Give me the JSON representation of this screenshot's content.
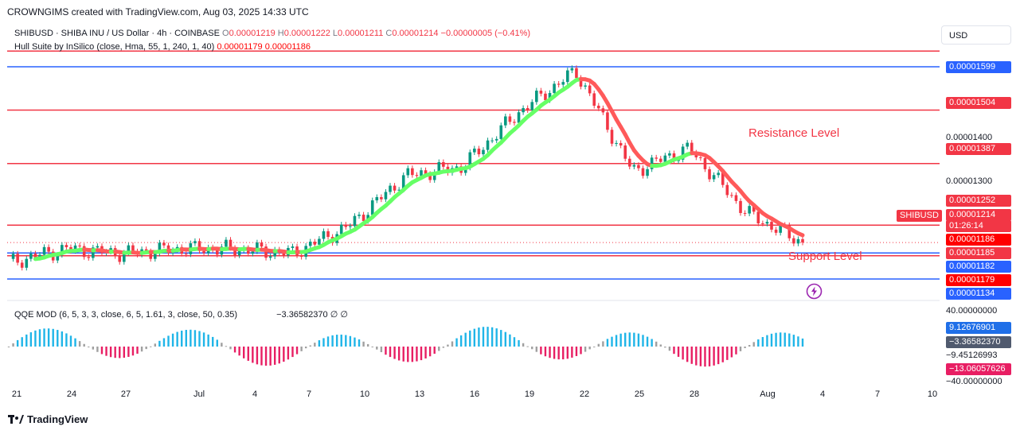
{
  "header": {
    "created": "CROWNGIMS created with TradingView.com, Aug 03, 2025 14:33 UTC"
  },
  "legend": {
    "symbol_line": "SHIBUSD · SHIBA INU / US Dollar · 4h · COINBASE",
    "o_label": "O",
    "o_value": "0.00001219",
    "h_label": "H",
    "h_value": "0.00001222",
    "l_label": "L",
    "l_value": "0.00001211",
    "c_label": "C",
    "c_value": "0.00001214",
    "change": "−0.00000005 (−0.41%)",
    "indicator": "Hull Suite by InSilico (close, Hma, 55, 1, 240, 1, 40)",
    "ind_v1": "0.00001179",
    "ind_v2": "0.00001186",
    "qqe": "QQE MOD (6, 5, 3, 3, close, 6, 5, 1.61, 3, close, 50, 0.35)",
    "qqe_value": "−3.36582370",
    "qqe_na1": "∅",
    "qqe_na2": "∅"
  },
  "currency_button": "USD",
  "annotations": {
    "resistance": "Resistance Level",
    "support": "Support Level"
  },
  "symbol_tag": "SHIBUSD",
  "price_axis": {
    "tick_1400": "0.00001400",
    "tick_1300": "0.00001300",
    "labels": [
      {
        "text": "0.00001599",
        "color": "#2962ff"
      },
      {
        "text": "0.00001504",
        "color": "#f23645"
      },
      {
        "text": "0.00001387",
        "color": "#f23645"
      },
      {
        "text": "0.00001252",
        "color": "#f23645"
      },
      {
        "text": "0.00001214",
        "color": "#f23645"
      },
      {
        "text": "01:26:14",
        "color": "#f23645"
      },
      {
        "text": "0.00001186",
        "color": "#ff0000"
      },
      {
        "text": "0.00001185",
        "color": "#f23645"
      },
      {
        "text": "0.00001182",
        "color": "#2962ff"
      },
      {
        "text": "0.00001179",
        "color": "#ff0000"
      },
      {
        "text": "0.00001134",
        "color": "#2962ff"
      }
    ]
  },
  "qqe_axis": {
    "top": "40.00000000",
    "l1": "9.12676901",
    "l2": "−3.36582370",
    "l3": "−9.45126993",
    "l4": "−13.06057626",
    "bottom": "−40.00000000"
  },
  "time_axis": [
    "21",
    "24",
    "27",
    "Jul",
    "4",
    "7",
    "10",
    "13",
    "16",
    "19",
    "22",
    "25",
    "28",
    "Aug",
    "4",
    "7",
    "10"
  ],
  "footer": {
    "brand": "TradingView"
  },
  "colors": {
    "up": "#089981",
    "down": "#f23645",
    "hull_up": "#66ff66",
    "hull_down": "#ff5a5a",
    "support_resistance": "#f23645",
    "blue_level": "#2962ff",
    "qqe_blue": "#1fb5e8",
    "qqe_magenta": "#e81e63",
    "qqe_gray": "#a0a0a0"
  },
  "chart_data": {
    "type": "candlestick",
    "title": "SHIBUSD · SHIBA INU / US Dollar · 4h · COINBASE",
    "x": [
      "Jun 21",
      "Jun 24",
      "Jun 27",
      "Jul 1",
      "Jul 4",
      "Jul 7",
      "Jul 10",
      "Jul 13",
      "Jul 16",
      "Jul 19",
      "Jul 22",
      "Jul 25",
      "Jul 28",
      "Aug 1",
      "Aug 3"
    ],
    "close_approx": [
      1.17e-05,
      1.2e-05,
      1.19e-05,
      1.2e-05,
      1.2e-05,
      1.19e-05,
      1.25e-05,
      1.36e-05,
      1.38e-05,
      1.5e-05,
      1.59e-05,
      1.37e-05,
      1.42e-05,
      1.28e-05,
      1.214e-05
    ],
    "horizontal_levels": [
      1.599e-05,
      1.504e-05,
      1.387e-05,
      1.252e-05,
      1.185e-05,
      1.134e-05
    ],
    "ylim": [
      1.11e-05,
      1.63e-05
    ],
    "last_price": 1.214e-05
  }
}
